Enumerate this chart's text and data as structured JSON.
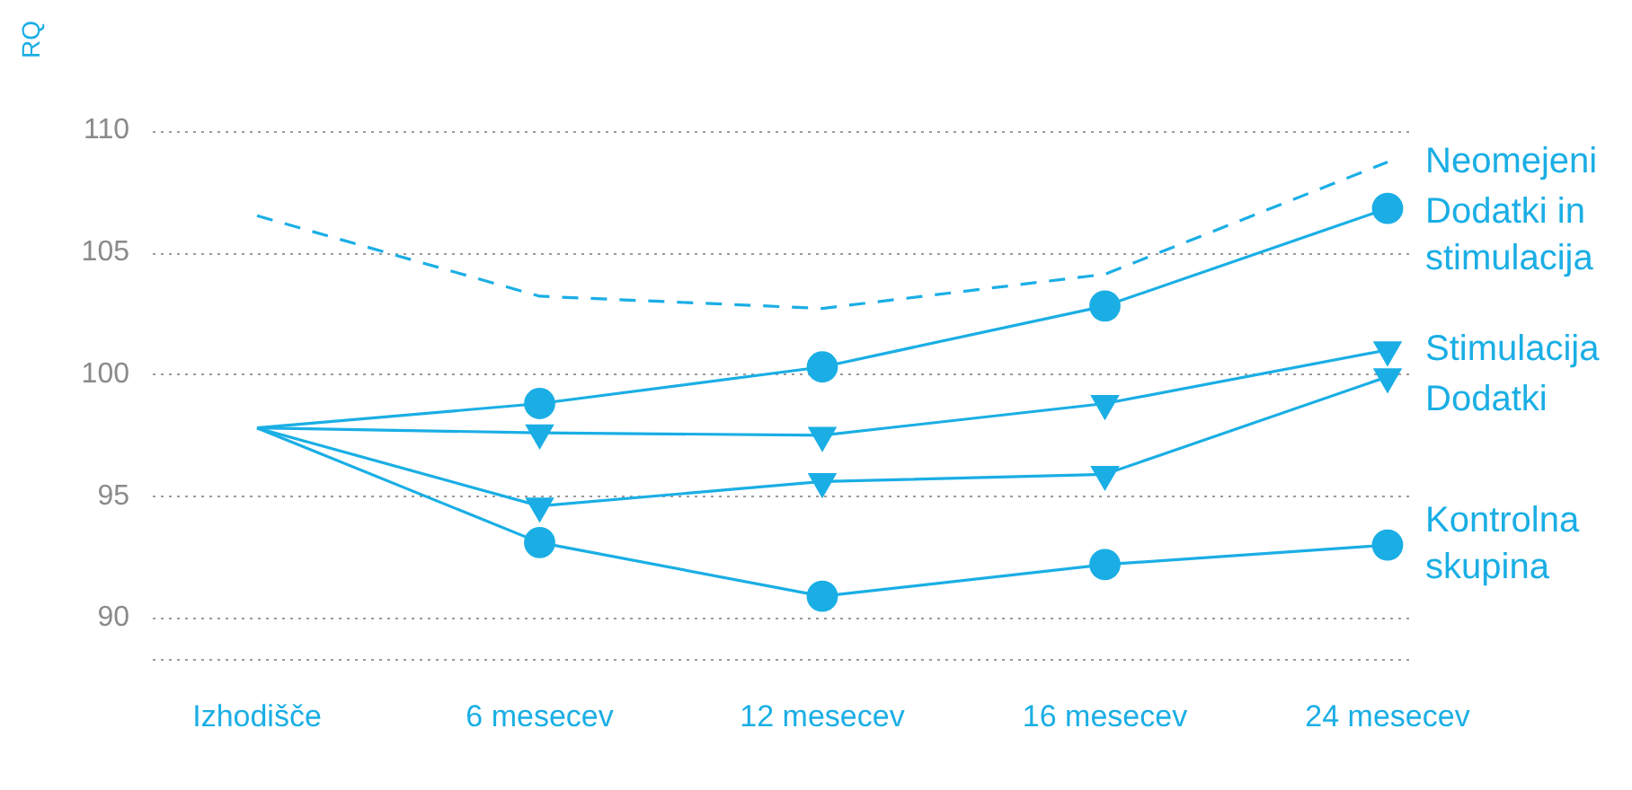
{
  "chart_data": {
    "type": "line",
    "ylabel": "RQ",
    "categories": [
      "Izhodišče",
      "6 mesecev",
      "12 mesecev",
      "16 mesecev",
      "24 mesecev"
    ],
    "ylim": [
      88.3,
      110
    ],
    "yticks": [
      90,
      95,
      100,
      105,
      110
    ],
    "grid": "y",
    "legend": false,
    "series": [
      {
        "name": "Neomejeni",
        "color": "#1aaee5",
        "line_style": "dashed",
        "marker": "none",
        "values": [
          106.5,
          103.2,
          102.7,
          104.1,
          108.7
        ]
      },
      {
        "name": "Dodatki in\nstimulacija",
        "color": "#1aaee5",
        "marker": "circle",
        "values": [
          97.8,
          98.8,
          100.3,
          102.8,
          106.8
        ]
      },
      {
        "name": "Stimulacija",
        "color": "#1aaee5",
        "marker": "triangle",
        "values": [
          97.8,
          97.6,
          97.5,
          98.8,
          101.0
        ]
      },
      {
        "name": "Dodatki",
        "color": "#1aaee5",
        "marker": "triangle",
        "values": [
          97.8,
          94.6,
          95.6,
          95.9,
          99.9
        ]
      },
      {
        "name": "Kontrolna\nskupina",
        "color": "#1aaee5",
        "marker": "circle",
        "values": [
          97.8,
          93.1,
          90.9,
          92.2,
          93.0
        ]
      }
    ]
  }
}
